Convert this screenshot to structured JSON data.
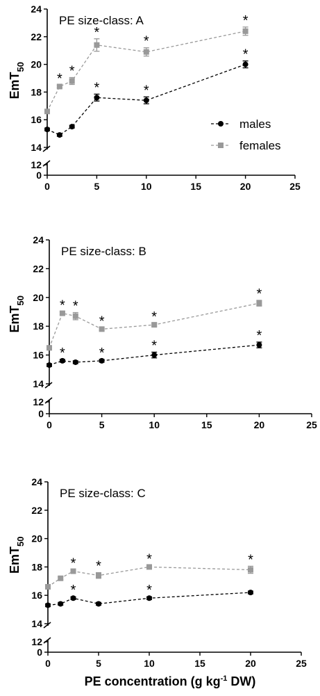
{
  "figure": {
    "ylabel_main": "EmT",
    "ylabel_sub": "50",
    "xlabel_pre": "PE concentration (g kg",
    "xlabel_sup": "-1",
    "xlabel_post": " DW)"
  },
  "legend": {
    "males": "males",
    "females": "females"
  },
  "colors": {
    "males": "#000000",
    "females": "#999999"
  },
  "chart_data": [
    {
      "type": "line",
      "title": "PE size-class: A",
      "x": [
        0,
        1.25,
        2.5,
        5,
        10,
        20
      ],
      "xlim": [
        0,
        25
      ],
      "xticks": [
        0,
        5,
        10,
        15,
        20,
        25
      ],
      "ylim": [
        0,
        24
      ],
      "yticks": [
        0,
        12,
        14,
        16,
        18,
        20,
        22,
        24
      ],
      "axis_break": [
        12,
        14
      ],
      "show_legend": true,
      "series": [
        {
          "name": "males",
          "marker": "circle",
          "values": [
            15.3,
            14.9,
            15.5,
            17.6,
            17.4,
            20.0
          ],
          "error": [
            0.1,
            0.1,
            0.1,
            0.25,
            0.25,
            0.25
          ],
          "significant": [
            false,
            false,
            false,
            true,
            true,
            true
          ]
        },
        {
          "name": "females",
          "marker": "square",
          "values": [
            16.6,
            18.4,
            18.8,
            21.4,
            20.9,
            22.4
          ],
          "error": [
            0.1,
            0.1,
            0.25,
            0.45,
            0.3,
            0.3
          ],
          "significant": [
            false,
            true,
            true,
            true,
            true,
            true
          ]
        }
      ]
    },
    {
      "type": "line",
      "title": "PE size-class: B",
      "x": [
        0,
        1.25,
        2.5,
        5,
        10,
        20
      ],
      "xlim": [
        0,
        25
      ],
      "xticks": [
        0,
        5,
        10,
        15,
        20,
        25
      ],
      "ylim": [
        0,
        24
      ],
      "yticks": [
        0,
        12,
        14,
        16,
        18,
        20,
        22,
        24
      ],
      "axis_break": [
        12,
        14
      ],
      "show_legend": false,
      "series": [
        {
          "name": "males",
          "marker": "circle",
          "values": [
            15.3,
            15.6,
            15.5,
            15.6,
            16.0,
            16.7
          ],
          "error": [
            0.1,
            0.1,
            0.1,
            0.1,
            0.2,
            0.2
          ],
          "significant": [
            false,
            true,
            false,
            true,
            true,
            true
          ]
        },
        {
          "name": "females",
          "marker": "square",
          "values": [
            16.5,
            18.9,
            18.7,
            17.8,
            18.1,
            19.6
          ],
          "error": [
            0.1,
            0.1,
            0.25,
            0.1,
            0.1,
            0.2
          ],
          "significant": [
            false,
            true,
            true,
            true,
            true,
            true
          ]
        }
      ]
    },
    {
      "type": "line",
      "title": "PE size-class: C",
      "x": [
        0,
        1.25,
        2.5,
        5,
        10,
        20
      ],
      "xlim": [
        0,
        25
      ],
      "xticks": [
        0,
        5,
        10,
        15,
        20,
        25
      ],
      "ylim": [
        0,
        24
      ],
      "yticks": [
        0,
        12,
        14,
        16,
        18,
        20,
        22,
        24
      ],
      "axis_break": [
        12,
        14
      ],
      "show_legend": false,
      "series": [
        {
          "name": "males",
          "marker": "circle",
          "values": [
            15.3,
            15.4,
            15.8,
            15.4,
            15.8,
            16.2
          ],
          "error": [
            0.1,
            0.1,
            0.1,
            0.1,
            0.1,
            0.1
          ],
          "significant": [
            false,
            false,
            true,
            false,
            true,
            false
          ]
        },
        {
          "name": "females",
          "marker": "square",
          "values": [
            16.6,
            17.2,
            17.7,
            17.4,
            18.0,
            17.8
          ],
          "error": [
            0.1,
            0.1,
            0.1,
            0.2,
            0.1,
            0.25
          ],
          "significant": [
            false,
            false,
            true,
            true,
            true,
            true
          ]
        }
      ]
    }
  ]
}
